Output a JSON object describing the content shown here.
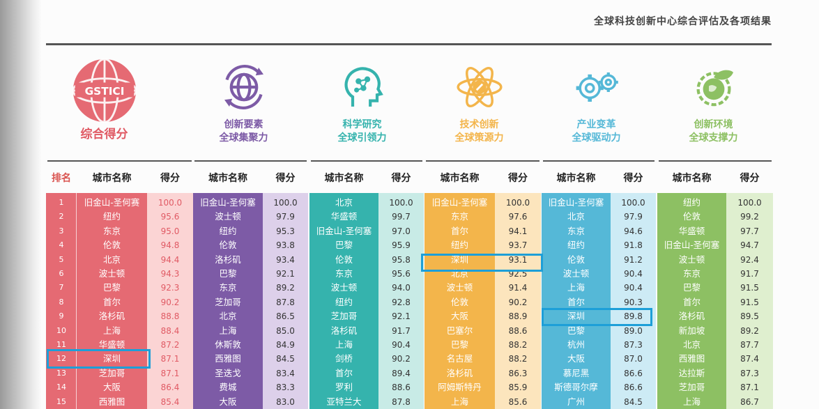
{
  "doc_title": "全球科技创新中心综合评估及各项结果",
  "headers": {
    "rank": "排名",
    "city": "城市名称",
    "score": "得分"
  },
  "gsticibadge": "GSTICI",
  "ranks": [
    "1",
    "2",
    "3",
    "4",
    "5",
    "6",
    "7",
    "8",
    "9",
    "10",
    "11",
    "12",
    "13",
    "14",
    "15"
  ],
  "groups": [
    {
      "title": "综合得分",
      "icon": "gstici-globe-icon",
      "city_color": "#e56a73",
      "score_color": "#fbd4d4",
      "score_text": "#e05a64",
      "cities": [
        "旧金山-圣何赛",
        "纽约",
        "东京",
        "伦敦",
        "北京",
        "波士顿",
        "巴黎",
        "首尔",
        "洛杉矶",
        "上海",
        "华盛顿",
        "深圳",
        "芝加哥",
        "大阪",
        "西雅图"
      ],
      "scores": [
        "100.0",
        "95.6",
        "95.0",
        "94.8",
        "94.4",
        "94.3",
        "92.3",
        "90.2",
        "88.8",
        "88.4",
        "87.2",
        "87.1",
        "87.1",
        "86.4",
        "85.4"
      ]
    },
    {
      "title": "创新要素\n全球集聚力",
      "icon": "globe-arrows-icon",
      "city_color": "#7d5ba6",
      "score_color": "#ddd0ea",
      "score_text": "#333",
      "cities": [
        "旧金山-圣何塞",
        "波士顿",
        "纽约",
        "伦敦",
        "洛杉矶",
        "巴黎",
        "东京",
        "芝加哥",
        "北京",
        "上海",
        "休斯敦",
        "西雅图",
        "圣迭戈",
        "费城",
        "大阪"
      ],
      "scores": [
        "100.0",
        "97.9",
        "95.3",
        "93.8",
        "93.4",
        "92.1",
        "89.2",
        "87.8",
        "86.5",
        "85.0",
        "84.9",
        "84.5",
        "83.4",
        "83.3",
        "83.0"
      ]
    },
    {
      "title": "科学研究\n全球引领力",
      "icon": "brain-head-icon",
      "city_color": "#35b3ad",
      "score_color": "#c8ebe6",
      "score_text": "#333",
      "cities": [
        "北京",
        "华盛顿",
        "旧金山-圣何塞",
        "巴黎",
        "伦敦",
        "东京",
        "波士顿",
        "纽约",
        "芝加哥",
        "洛杉矶",
        "上海",
        "剑桥",
        "首尔",
        "罗利",
        "亚特兰大"
      ],
      "scores": [
        "100.0",
        "99.7",
        "97.0",
        "95.9",
        "95.8",
        "95.6",
        "94.0",
        "92.8",
        "92.1",
        "91.7",
        "90.4",
        "90.2",
        "89.4",
        "88.6",
        "87.8"
      ]
    },
    {
      "title": "技术创新\n全球策源力",
      "icon": "atom-pencil-icon",
      "city_color": "#f3b54b",
      "score_color": "#fce5bd",
      "score_text": "#333",
      "cities": [
        "旧金山-圣何塞",
        "东京",
        "首尔",
        "纽约",
        "深圳",
        "北京",
        "波士顿",
        "伦敦",
        "大阪",
        "巴塞尔",
        "巴黎",
        "名古屋",
        "洛杉矶",
        "阿姆斯特丹",
        "上海"
      ],
      "scores": [
        "100.0",
        "97.6",
        "94.1",
        "93.7",
        "93.1",
        "92.5",
        "91.4",
        "90.2",
        "88.9",
        "88.6",
        "88.2",
        "88.2",
        "86.3",
        "85.9",
        "85.6"
      ]
    },
    {
      "title": "产业变革\n全球驱动力",
      "icon": "gears-icon",
      "city_color": "#55b8d7",
      "score_color": "#cdebf5",
      "score_text": "#333",
      "cities": [
        "旧金山-圣何塞",
        "北京",
        "东京",
        "纽约",
        "伦敦",
        "波士顿",
        "上海",
        "首尔",
        "深圳",
        "巴黎",
        "杭州",
        "大阪",
        "慕尼黑",
        "斯德哥尔摩",
        "广州"
      ],
      "scores": [
        "100.0",
        "97.9",
        "94.6",
        "91.8",
        "91.2",
        "90.4",
        "90.4",
        "90.3",
        "89.8",
        "89.0",
        "87.3",
        "87.0",
        "86.6",
        "86.6",
        "84.5"
      ]
    },
    {
      "title": "创新环境\n全球支撑力",
      "icon": "earth-leaf-gear-icon",
      "city_color": "#8dc063",
      "score_color": "#dfefcf",
      "score_text": "#333",
      "cities": [
        "纽约",
        "伦敦",
        "华盛顿",
        "旧金山-圣何塞",
        "波士顿",
        "东京",
        "巴黎",
        "首尔",
        "洛杉矶",
        "新加坡",
        "北京",
        "西雅图",
        "达拉斯",
        "芝加哥",
        "上海"
      ],
      "scores": [
        "100.0",
        "99.2",
        "97.7",
        "94.7",
        "92.4",
        "91.7",
        "91.5",
        "91.5",
        "89.5",
        "89.2",
        "87.7",
        "87.4",
        "87.3",
        "87.1",
        "86.7"
      ]
    }
  ],
  "colors": {
    "title_main": "#e05a64",
    "highlight_border": "#1d9fd8"
  }
}
